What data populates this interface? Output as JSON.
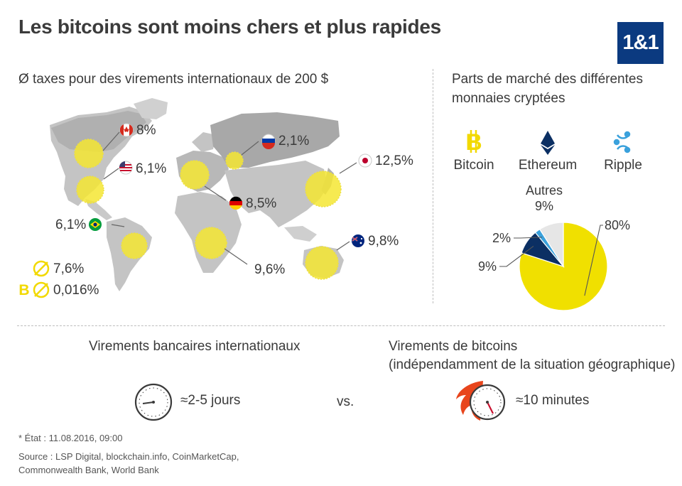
{
  "header": {
    "title": "Les bitcoins sont moins chers et plus rapides",
    "logo": "1&1"
  },
  "map_section": {
    "title": "Ø taxes pour des virements internationaux de 200 $",
    "countries": [
      {
        "flag": "canada-flag-icon",
        "value": "8%"
      },
      {
        "flag": "russia-flag-icon",
        "value": "2,1%"
      },
      {
        "flag": "usa-flag-icon",
        "value": "6,1%"
      },
      {
        "flag": "japan-flag-icon",
        "value": "12,5%"
      },
      {
        "flag": "germany-flag-icon",
        "value": "8,5%"
      },
      {
        "flag": "brazil-flag-icon",
        "value": "6,1%"
      },
      {
        "flag": "australia-flag-icon",
        "value": "9,8%"
      },
      {
        "flag": "",
        "value": "9,6%"
      }
    ],
    "avg_fee": "7,6%",
    "bitcoin_fee": "0,016%"
  },
  "market_section": {
    "title_line1": "Parts de marché des différentes",
    "title_line2": "monnaies cryptées",
    "coins": [
      {
        "name": "Bitcoin",
        "icon": "bitcoin-icon",
        "color": "#f0dc00"
      },
      {
        "name": "Ethereum",
        "icon": "ethereum-icon",
        "color": "#0b2f63"
      },
      {
        "name": "Ripple",
        "icon": "ripple-icon",
        "color": "#3aa1dc"
      }
    ],
    "autres_label": "Autres"
  },
  "chart_data": {
    "type": "pie",
    "title": "Parts de marché des différentes monnaies cryptées",
    "slices": [
      {
        "name": "Bitcoin",
        "value": 80,
        "label": "80%",
        "color": "#f0e000"
      },
      {
        "name": "Ethereum",
        "value": 9,
        "label": "9%",
        "color": "#0b2f63"
      },
      {
        "name": "Ripple",
        "value": 2,
        "label": "2%",
        "color": "#3aa1dc"
      },
      {
        "name": "Autres",
        "value": 9,
        "label": "9%",
        "color": "#e6e6e6"
      }
    ]
  },
  "comparison": {
    "bank_title": "Virements bancaires internationaux",
    "bank_time": "≈2-5 jours",
    "vs": "vs.",
    "btc_title_line1": "Virements de bitcoins",
    "btc_title_line2": "(indépendamment de la situation géographique)",
    "btc_time": "≈10 minutes"
  },
  "footer": {
    "state": "* État : 11.08.2016, 09:00",
    "source_line1": "Source :  LSP Digital, blockchain.info, CoinMarketCap,",
    "source_line2": "Commonwealth Bank, World Bank"
  }
}
